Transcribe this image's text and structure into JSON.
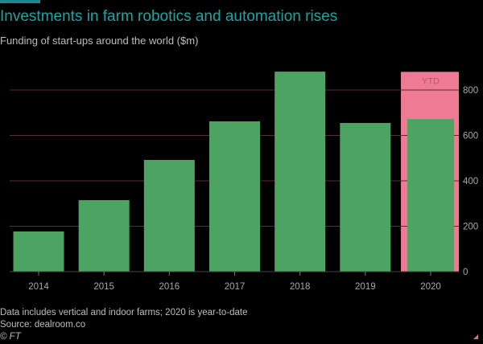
{
  "title": "Investments in farm robotics and automation rises",
  "subtitle": "Funding of start-ups around the world ($m)",
  "footer": {
    "note": "Data includes vertical and indoor farms; 2020 is year-to-date",
    "source": "Source: dealroom.co",
    "credit": "© FT"
  },
  "colors": {
    "bar": "#4da462",
    "highlight": "#ee7a93",
    "grid": "#5a2a35",
    "title": "#1fa3a0"
  },
  "chart_data": {
    "type": "bar",
    "title": "Investments in farm robotics and automation rises",
    "subtitle": "Funding of start-ups around the world ($m)",
    "categories": [
      "2014",
      "2015",
      "2016",
      "2017",
      "2018",
      "2019",
      "2020"
    ],
    "values": [
      177,
      315,
      492,
      662,
      881,
      655,
      672
    ],
    "highlight": {
      "category": "2020",
      "label": "YTD"
    },
    "ylim": [
      0,
      880
    ],
    "yticks": [
      0,
      200,
      400,
      600,
      800
    ],
    "yaxis_side": "right",
    "grid": true,
    "xlabel": "",
    "ylabel": ""
  }
}
